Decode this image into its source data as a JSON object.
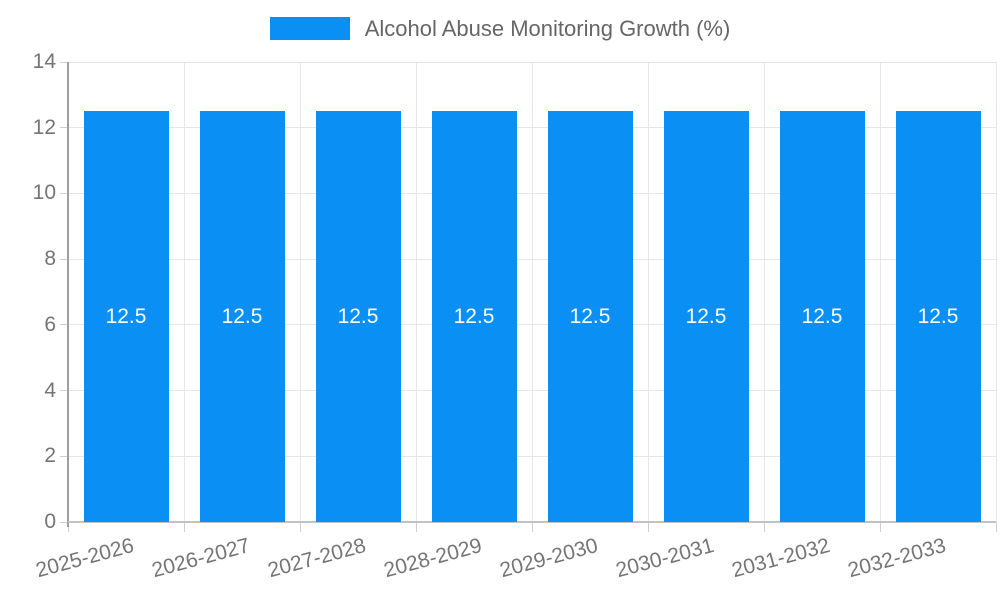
{
  "chart_data": {
    "type": "bar",
    "title": "",
    "categories": [
      "2025-2026",
      "2026-2027",
      "2027-2028",
      "2028-2029",
      "2029-2030",
      "2030-2031",
      "2031-2032",
      "2032-2033"
    ],
    "series": [
      {
        "name": "Alcohol Abuse Monitoring Growth (%)",
        "values": [
          12.5,
          12.5,
          12.5,
          12.5,
          12.5,
          12.5,
          12.5,
          12.5
        ]
      }
    ],
    "bar_value_labels": [
      "12.5",
      "12.5",
      "12.5",
      "12.5",
      "12.5",
      "12.5",
      "12.5",
      "12.5"
    ],
    "xlabel": "",
    "ylabel": "",
    "ylim": [
      0,
      14
    ],
    "yticks": [
      0,
      2,
      4,
      6,
      8,
      10,
      12,
      14
    ],
    "ytick_step": 2,
    "grid": true,
    "legend_position": "top-center",
    "colors": {
      "bar": "#0a8ff5",
      "gridline": "#e6e6e6",
      "y_axis_line": "#9e9e9e",
      "x_axis_line": "#c2c2c2",
      "tick_label": "#757575",
      "legend_text": "#666666",
      "bar_value_text": "#ffffff"
    }
  }
}
